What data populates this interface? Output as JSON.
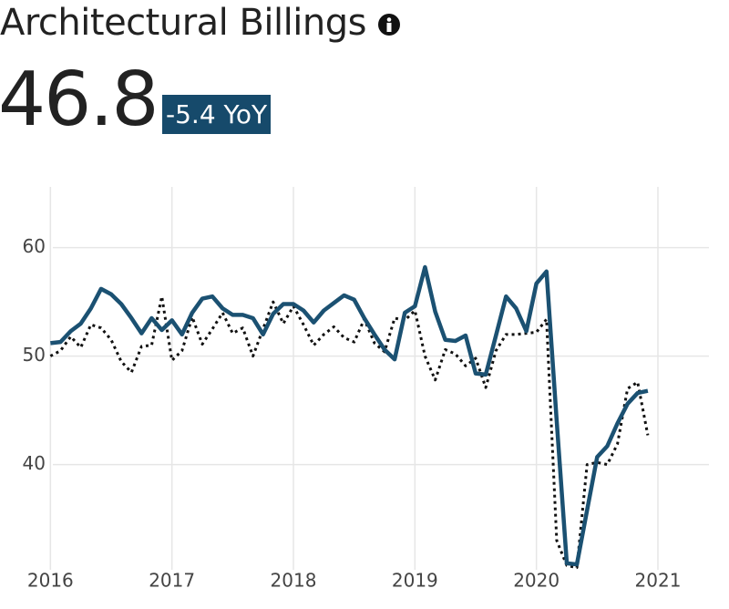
{
  "header": {
    "title": "Architectural Billings",
    "value": "46.8",
    "change": "-5.4 YoY"
  },
  "chart_data": {
    "type": "line",
    "x": [
      2016,
      2016.083,
      2016.167,
      2016.25,
      2016.333,
      2016.417,
      2016.5,
      2016.583,
      2016.667,
      2016.75,
      2016.833,
      2016.917,
      2017,
      2017.083,
      2017.167,
      2017.25,
      2017.333,
      2017.417,
      2017.5,
      2017.583,
      2017.667,
      2017.75,
      2017.833,
      2017.917,
      2018,
      2018.083,
      2018.167,
      2018.25,
      2018.333,
      2018.417,
      2018.5,
      2018.583,
      2018.667,
      2018.75,
      2018.833,
      2018.917,
      2019,
      2019.083,
      2019.167,
      2019.25,
      2019.333,
      2019.417,
      2019.5,
      2019.583,
      2019.667,
      2019.75,
      2019.833,
      2019.917,
      2020,
      2020.083,
      2020.167,
      2020.25,
      2020.333,
      2020.417,
      2020.5,
      2020.583,
      2020.667,
      2020.75,
      2020.833,
      2020.917
    ],
    "series": [
      {
        "color": "#1b5172",
        "style": "solid",
        "values": [
          51.2,
          51.3,
          52.3,
          53.0,
          54.4,
          56.2,
          55.7,
          54.8,
          53.5,
          52.1,
          53.5,
          52.4,
          53.3,
          52.0,
          54.0,
          55.3,
          55.5,
          54.4,
          53.8,
          53.8,
          53.5,
          52.0,
          53.9,
          54.8,
          54.8,
          54.2,
          53.1,
          54.2,
          54.9,
          55.6,
          55.2,
          53.5,
          52.0,
          50.6,
          49.7,
          54.0,
          54.6,
          58.2,
          54.1,
          51.5,
          51.4,
          51.9,
          48.4,
          48.3,
          51.9,
          55.5,
          54.4,
          52.3,
          56.7,
          57.8,
          44.0,
          30.9,
          30.8,
          35.8,
          40.7,
          41.7,
          43.8,
          45.6,
          46.6,
          46.8
        ]
      },
      {
        "color": "#111111",
        "style": "dotted",
        "values": [
          50.0,
          50.5,
          51.8,
          50.8,
          52.9,
          52.6,
          51.5,
          49.5,
          48.5,
          50.9,
          51.0,
          55.5,
          49.6,
          50.5,
          53.6,
          51.1,
          52.5,
          54.0,
          52.1,
          52.6,
          50.0,
          52.5,
          55.0,
          53.0,
          54.6,
          52.9,
          51.0,
          52.0,
          52.7,
          51.7,
          51.3,
          53.4,
          51.2,
          50.4,
          53.5,
          53.3,
          54.2,
          50.0,
          47.8,
          50.6,
          50.2,
          49.1,
          49.8,
          47.1,
          50.5,
          52.0,
          52.0,
          52.1,
          52.2,
          53.4,
          33.0,
          30.7,
          30.5,
          40.0,
          40.2,
          40.0,
          41.9,
          47.0,
          47.6,
          42.7
        ]
      }
    ],
    "xlim": [
      2015.96,
      2021.42
    ],
    "xticks": [
      2016,
      2017,
      2018,
      2019,
      2020,
      2021
    ],
    "ylim": [
      30.3,
      65.6
    ],
    "yticks": [
      40,
      50,
      60
    ],
    "grid": true
  }
}
